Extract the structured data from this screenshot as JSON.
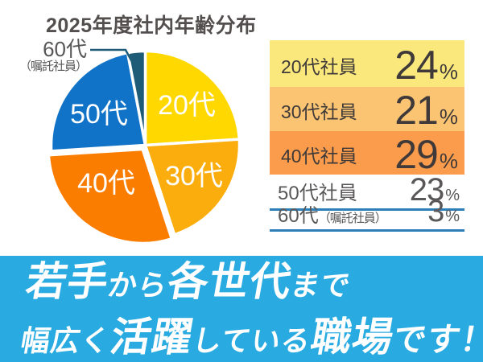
{
  "title": "2025年度社内年齢分布",
  "chart_data": {
    "type": "pie",
    "title": "2025年度社内年齢分布",
    "categories": [
      "20代",
      "30代",
      "40代",
      "50代",
      "60代（嘱託社員）"
    ],
    "values": [
      24,
      21,
      29,
      23,
      3
    ],
    "colors": [
      "#FFD800",
      "#FBAD0D",
      "#FB7D00",
      "#1173C8",
      "#1E5B77"
    ],
    "slice_labels": [
      "20代",
      "30代",
      "40代",
      "50代",
      ""
    ],
    "start_angle_deg": 0,
    "direction": "clockwise",
    "exploded_index": 2,
    "legend_position": "right",
    "callout": {
      "line1": "60代",
      "line2": "（嘱託社員）"
    }
  },
  "legend": {
    "underline_color": "#2B7EB8",
    "rows": [
      {
        "label": "20代社員",
        "value": "24",
        "unit": "%",
        "bg": "#FBE87C",
        "variant": "filled"
      },
      {
        "label": "30代社員",
        "value": "21",
        "unit": "%",
        "bg": "#FBC472",
        "variant": "filled"
      },
      {
        "label": "40代社員",
        "value": "29",
        "unit": "%",
        "bg": "#FA9C4B",
        "variant": "filled"
      },
      {
        "label": "50代社員",
        "value": "23",
        "unit": "%",
        "bg": "#FFFFFF",
        "variant": "underline"
      },
      {
        "label": "60代",
        "label_note": "（嘱託社員）",
        "value": "3",
        "unit": "%",
        "bg": "#FFFFFF",
        "variant": "underline"
      }
    ]
  },
  "banner": {
    "bg": "#29ABE2",
    "text_color": "#FFFFFF",
    "line1": [
      {
        "text": "若手",
        "emphasis": "large"
      },
      {
        "text": "から",
        "emphasis": "small"
      },
      {
        "text": "各世代",
        "emphasis": "large"
      },
      {
        "text": "まで",
        "emphasis": "small"
      }
    ],
    "line2": [
      {
        "text": "幅広く",
        "emphasis": "small"
      },
      {
        "text": "活躍",
        "emphasis": "large"
      },
      {
        "text": "している",
        "emphasis": "small"
      },
      {
        "text": "職場",
        "emphasis": "large"
      },
      {
        "text": "です！",
        "emphasis": "medium"
      }
    ]
  }
}
